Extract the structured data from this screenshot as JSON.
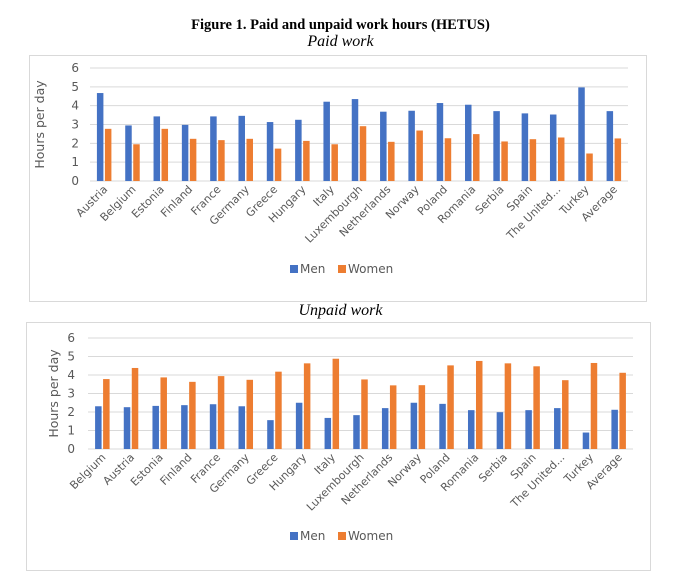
{
  "figure": {
    "title": "Figure 1. Paid and unpaid work hours (HETUS)"
  },
  "colors": {
    "men": "#4472c4",
    "women": "#ed7d31",
    "grid": "#d9d9d9",
    "text": "#595959"
  },
  "chart_data": [
    {
      "type": "bar",
      "title": "Paid work",
      "xlabel": "",
      "ylabel": "Hours per day",
      "ylim": [
        0,
        6
      ],
      "yticks": [
        "0",
        "1",
        "2",
        "3",
        "4",
        "5",
        "6"
      ],
      "grid": true,
      "legend_position": "bottom",
      "categories": [
        "Austria",
        "Belgium",
        "Estonia",
        "Finland",
        "France",
        "Germany",
        "Greece",
        "Hungary",
        "Italy",
        "Luxembourgh",
        "Netherlands",
        "Norway",
        "Poland",
        "Romania",
        "Serbia",
        "Spain",
        "The United...",
        "Turkey",
        "Average"
      ],
      "series": [
        {
          "name": "Men",
          "values": [
            4.67,
            2.95,
            3.43,
            2.98,
            3.43,
            3.46,
            3.13,
            3.25,
            4.21,
            4.35,
            3.68,
            3.73,
            4.14,
            4.05,
            3.71,
            3.59,
            3.53,
            4.97,
            3.71
          ]
        },
        {
          "name": "Women",
          "values": [
            2.77,
            1.95,
            2.77,
            2.24,
            2.17,
            2.24,
            1.72,
            2.13,
            1.95,
            2.91,
            2.08,
            2.68,
            2.27,
            2.49,
            2.1,
            2.22,
            2.31,
            1.46,
            2.26
          ]
        }
      ]
    },
    {
      "type": "bar",
      "title": "Unpaid work",
      "xlabel": "",
      "ylabel": "Hours per day",
      "ylim": [
        0,
        6
      ],
      "yticks": [
        "0",
        "1",
        "2",
        "3",
        "4",
        "5",
        "6"
      ],
      "grid": true,
      "legend_position": "bottom",
      "categories": [
        "Belgium",
        "Austria",
        "Estonia",
        "Finland",
        "France",
        "Germany",
        "Greece",
        "Hungary",
        "Italy",
        "Luxembourgh",
        "Netherlands",
        "Norway",
        "Poland",
        "Romania",
        "Serbia",
        "Spain",
        "The United...",
        "Turkey",
        "Average"
      ],
      "series": [
        {
          "name": "Men",
          "values": [
            2.31,
            2.26,
            2.33,
            2.37,
            2.42,
            2.31,
            1.56,
            2.5,
            1.68,
            1.83,
            2.21,
            2.5,
            2.44,
            2.1,
            1.99,
            2.1,
            2.21,
            0.89,
            2.12
          ]
        },
        {
          "name": "Women",
          "values": [
            3.78,
            4.38,
            3.87,
            3.63,
            3.94,
            3.74,
            4.18,
            4.63,
            4.88,
            3.76,
            3.44,
            3.45,
            4.52,
            4.76,
            4.63,
            4.47,
            3.72,
            4.65,
            4.12
          ]
        }
      ]
    }
  ]
}
